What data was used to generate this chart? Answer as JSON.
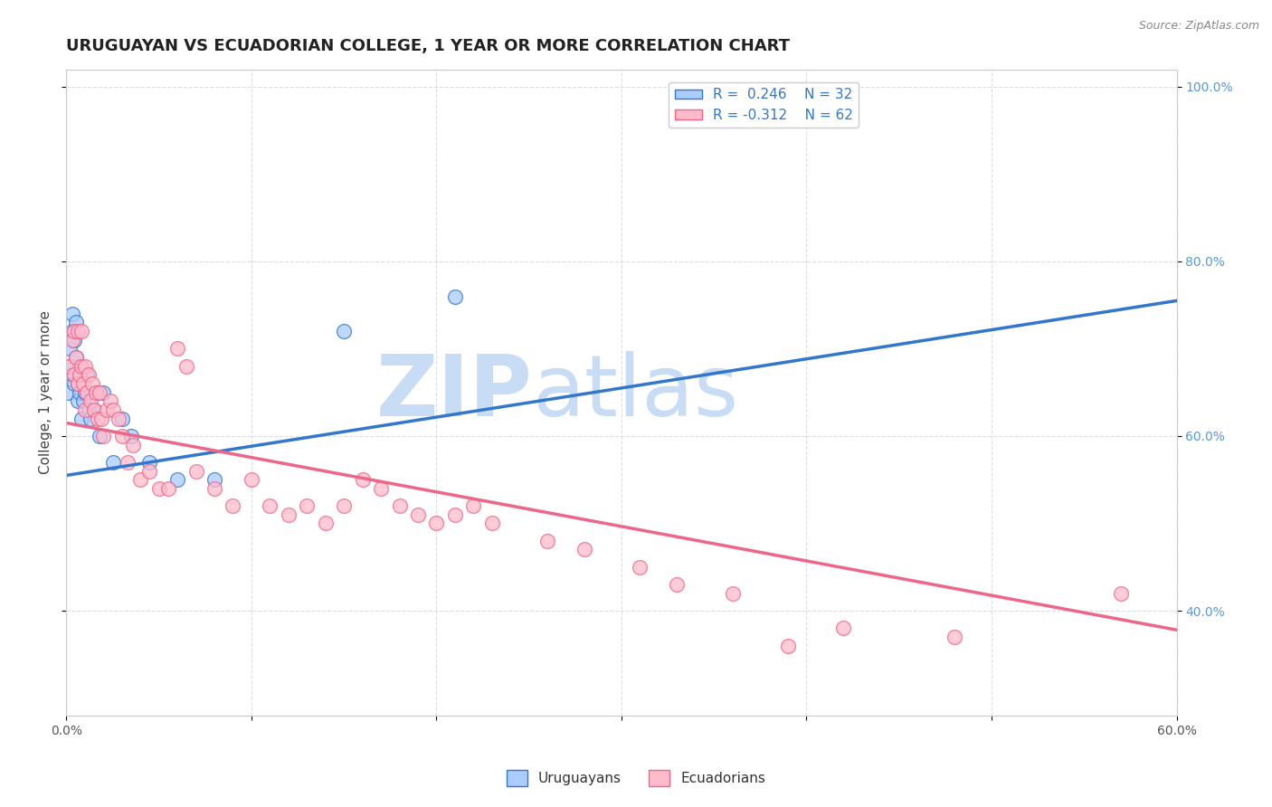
{
  "title": "URUGUAYAN VS ECUADORIAN COLLEGE, 1 YEAR OR MORE CORRELATION CHART",
  "source_text": "Source: ZipAtlas.com",
  "ylabel": "College, 1 year or more",
  "xlim": [
    0.0,
    0.6
  ],
  "ylim": [
    0.28,
    1.02
  ],
  "xticks": [
    0.0,
    0.1,
    0.2,
    0.3,
    0.4,
    0.5,
    0.6
  ],
  "xticklabels": [
    "0.0%",
    "",
    "",
    "",
    "",
    "",
    "60.0%"
  ],
  "yticks": [
    0.4,
    0.6,
    0.8,
    1.0
  ],
  "yticklabels": [
    "40.0%",
    "60.0%",
    "80.0%",
    "100.0%"
  ],
  "legend_label1": "R =  0.246    N = 32",
  "legend_label2": "R = -0.312    N = 62",
  "legend_series1": "Uruguayans",
  "legend_series2": "Ecuadorians",
  "color_uruguayan": "#aaccff",
  "color_ecuadorian": "#ffbbcc",
  "color_trend_uruguayan": "#3377cc",
  "color_trend_ecuadorian": "#ee6688",
  "color_trend_dashed": "#bbbbbb",
  "uruguayan_x": [
    0.001,
    0.002,
    0.002,
    0.003,
    0.003,
    0.003,
    0.004,
    0.004,
    0.005,
    0.005,
    0.006,
    0.006,
    0.007,
    0.007,
    0.008,
    0.009,
    0.01,
    0.011,
    0.012,
    0.013,
    0.015,
    0.016,
    0.018,
    0.02,
    0.025,
    0.03,
    0.035,
    0.045,
    0.06,
    0.08,
    0.15,
    0.21
  ],
  "uruguayan_y": [
    0.65,
    0.7,
    0.68,
    0.72,
    0.67,
    0.74,
    0.66,
    0.71,
    0.69,
    0.73,
    0.66,
    0.64,
    0.68,
    0.65,
    0.62,
    0.64,
    0.65,
    0.67,
    0.63,
    0.62,
    0.63,
    0.65,
    0.6,
    0.65,
    0.57,
    0.62,
    0.6,
    0.57,
    0.55,
    0.55,
    0.72,
    0.76
  ],
  "ecuadorian_x": [
    0.002,
    0.003,
    0.004,
    0.004,
    0.005,
    0.006,
    0.006,
    0.007,
    0.008,
    0.008,
    0.009,
    0.01,
    0.01,
    0.011,
    0.012,
    0.013,
    0.014,
    0.015,
    0.016,
    0.017,
    0.018,
    0.019,
    0.02,
    0.022,
    0.024,
    0.025,
    0.028,
    0.03,
    0.033,
    0.036,
    0.04,
    0.045,
    0.05,
    0.055,
    0.06,
    0.065,
    0.07,
    0.08,
    0.09,
    0.1,
    0.11,
    0.12,
    0.13,
    0.14,
    0.15,
    0.16,
    0.17,
    0.18,
    0.19,
    0.2,
    0.21,
    0.22,
    0.23,
    0.26,
    0.28,
    0.31,
    0.33,
    0.36,
    0.39,
    0.42,
    0.48,
    0.57
  ],
  "ecuadorian_y": [
    0.68,
    0.71,
    0.67,
    0.72,
    0.69,
    0.66,
    0.72,
    0.67,
    0.68,
    0.72,
    0.66,
    0.68,
    0.63,
    0.65,
    0.67,
    0.64,
    0.66,
    0.63,
    0.65,
    0.62,
    0.65,
    0.62,
    0.6,
    0.63,
    0.64,
    0.63,
    0.62,
    0.6,
    0.57,
    0.59,
    0.55,
    0.56,
    0.54,
    0.54,
    0.7,
    0.68,
    0.56,
    0.54,
    0.52,
    0.55,
    0.52,
    0.51,
    0.52,
    0.5,
    0.52,
    0.55,
    0.54,
    0.52,
    0.51,
    0.5,
    0.51,
    0.52,
    0.5,
    0.48,
    0.47,
    0.45,
    0.43,
    0.42,
    0.36,
    0.38,
    0.37,
    0.42
  ],
  "trend_u_x0": 0.0,
  "trend_u_y0": 0.555,
  "trend_u_x1": 0.6,
  "trend_u_y1": 0.755,
  "trend_u_dash_x0": 0.3,
  "trend_u_dash_y0": 0.655,
  "trend_u_dash_x1": 0.6,
  "trend_u_dash_y1": 0.755,
  "trend_e_x0": 0.0,
  "trend_e_y0": 0.615,
  "trend_e_x1": 0.6,
  "trend_e_y1": 0.378,
  "background_color": "#ffffff",
  "grid_color": "#dddddd",
  "watermark_zip": "ZIP",
  "watermark_atlas": "atlas",
  "watermark_color": "#c8ddf5",
  "title_fontsize": 13,
  "axis_label_fontsize": 11,
  "tick_fontsize": 10,
  "legend_fontsize": 11
}
